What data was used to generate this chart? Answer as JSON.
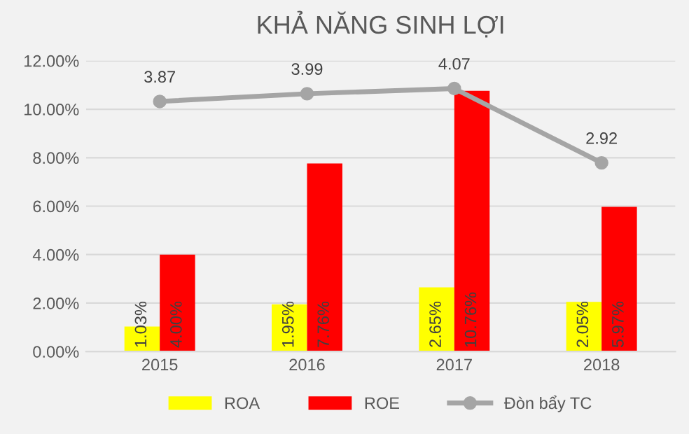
{
  "chart_data": {
    "type": "bar",
    "title": "KHẢ NĂNG SINH LỢI",
    "categories": [
      "2015",
      "2016",
      "2017",
      "2018"
    ],
    "series": [
      {
        "name": "ROA",
        "color": "#ffff00",
        "values": [
          1.03,
          1.95,
          2.65,
          2.05
        ],
        "value_labels": [
          "1.03%",
          "1.95%",
          "2.65%",
          "2.05%"
        ]
      },
      {
        "name": "ROE",
        "color": "#ff0000",
        "values": [
          4.0,
          7.76,
          10.76,
          5.97
        ],
        "value_labels": [
          "4.00%",
          "7.76%",
          "10.76%",
          "5.97%"
        ]
      },
      {
        "name": "Đòn bẩy TC",
        "type": "line",
        "axis": "y2",
        "color": "#a5a5a5",
        "marker": "circle",
        "values": [
          3.87,
          3.99,
          4.07,
          2.92
        ],
        "value_labels": [
          "3.87",
          "3.99",
          "4.07",
          "2.92"
        ]
      }
    ],
    "ylim": [
      0,
      12
    ],
    "yticks": [
      {
        "value": 0,
        "label": "0.00%"
      },
      {
        "value": 2,
        "label": "2.00%"
      },
      {
        "value": 4,
        "label": "4.00%"
      },
      {
        "value": 6,
        "label": "6.00%"
      },
      {
        "value": 8,
        "label": "8.00%"
      },
      {
        "value": 10,
        "label": "10.00%"
      },
      {
        "value": 12,
        "label": "12.00%"
      }
    ],
    "y2lim": [
      0,
      4.5
    ],
    "tick_labels": "xy",
    "grid": "y",
    "legend": "bottom"
  }
}
